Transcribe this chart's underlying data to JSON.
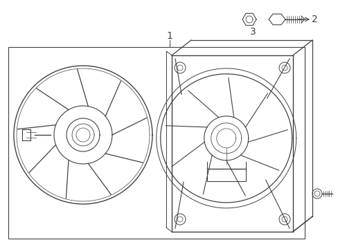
{
  "bg_color": "#ffffff",
  "line_color": "#404040",
  "fig_width": 4.89,
  "fig_height": 3.6,
  "dpi": 100,
  "label_1": "1",
  "label_2": "2",
  "label_3": "3"
}
